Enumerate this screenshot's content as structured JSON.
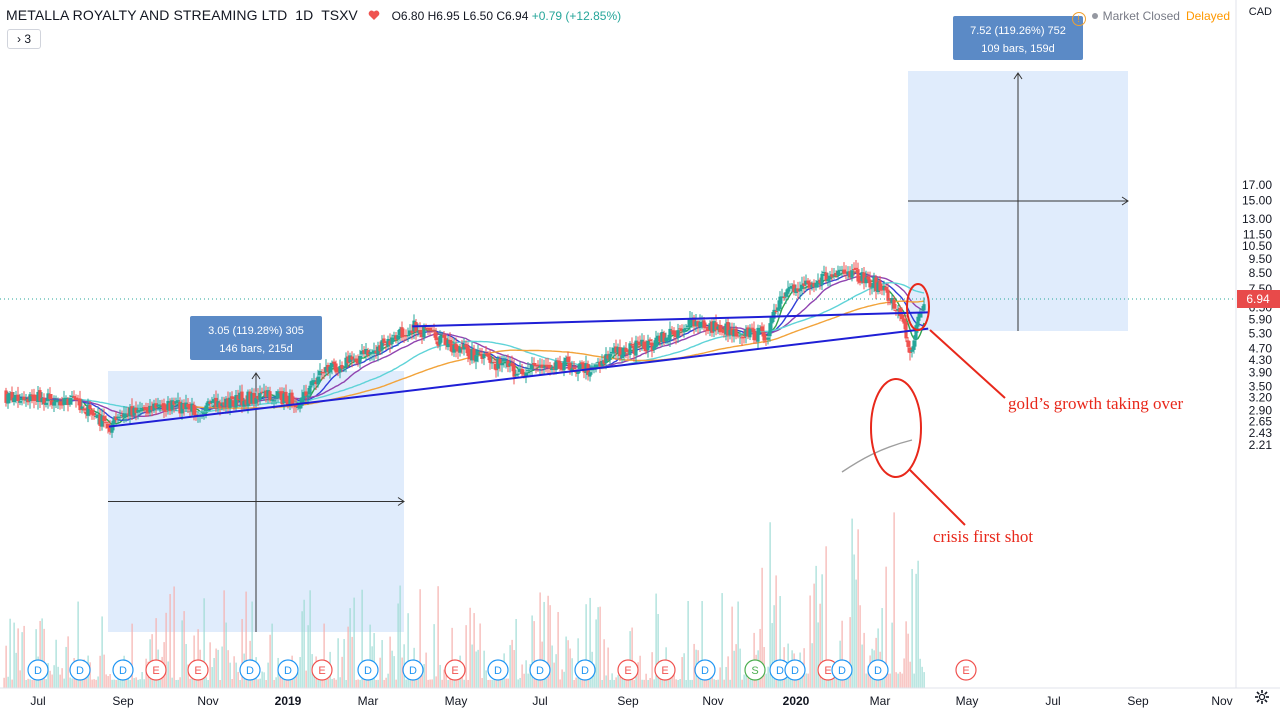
{
  "header": {
    "title": "METALLA ROYALTY AND STREAMING LTD",
    "interval": "1D",
    "exchange": "TSXV",
    "open": "O6.80",
    "high": "H6.95",
    "low": "L6.50",
    "close": "C6.94",
    "change": "+0.79 (+12.85%)",
    "indicators_button": "3"
  },
  "status": {
    "market": "Market Closed",
    "delayed": "Delayed"
  },
  "currency": "CAD",
  "colors": {
    "up": "#26a69a",
    "down": "#ef5350",
    "trend": "#1f1fd6",
    "annotation": "#e8281b",
    "measure_fill": "#dbe9fb",
    "label_box": "#5b8ac6",
    "price_tag": "#e84a4a",
    "ma_green": "#2fa24d",
    "ma_blue": "#3140d8",
    "ma_purple": "#9044b0",
    "ma_cyan": "#5fd3d8",
    "ma_orange": "#f2a33a",
    "ma_gray": "#9e9e9e"
  },
  "chart_data": {
    "type": "candlestick",
    "title": "METALLA ROYALTY AND STREAMING LTD",
    "price_axis": {
      "ticks": [
        "17.00",
        "15.00",
        "13.00",
        "11.50",
        "10.50",
        "9.50",
        "8.50",
        "7.50",
        "6.50",
        "5.90",
        "5.30",
        "4.70",
        "4.30",
        "3.90",
        "3.50",
        "3.20",
        "2.90",
        "2.65",
        "2.43",
        "2.21"
      ],
      "scale": "log",
      "last_price": "6.94"
    },
    "time_axis": {
      "ticks": [
        "Jul",
        "Sep",
        "Nov",
        "2019",
        "Mar",
        "May",
        "Jul",
        "Sep",
        "Nov",
        "2020",
        "Mar",
        "May",
        "Jul",
        "Sep",
        "Nov"
      ]
    },
    "price_path": [
      {
        "date": "2018-06-15",
        "close": 3.22
      },
      {
        "date": "2018-07-15",
        "close": 3.18
      },
      {
        "date": "2018-08-05",
        "close": 3.12
      },
      {
        "date": "2018-08-20",
        "close": 2.72
      },
      {
        "date": "2018-08-28",
        "close": 2.55
      },
      {
        "date": "2018-09-15",
        "close": 2.95
      },
      {
        "date": "2018-10-15",
        "close": 3.0
      },
      {
        "date": "2018-11-01",
        "close": 2.9
      },
      {
        "date": "2018-11-20",
        "close": 3.1
      },
      {
        "date": "2018-12-15",
        "close": 3.25
      },
      {
        "date": "2019-01-10",
        "close": 3.12
      },
      {
        "date": "2019-01-25",
        "close": 3.95
      },
      {
        "date": "2019-02-15",
        "close": 4.3
      },
      {
        "date": "2019-03-10",
        "close": 4.8
      },
      {
        "date": "2019-03-30",
        "close": 5.6
      },
      {
        "date": "2019-04-15",
        "close": 5.1
      },
      {
        "date": "2019-05-15",
        "close": 4.45
      },
      {
        "date": "2019-06-10",
        "close": 3.95
      },
      {
        "date": "2019-07-10",
        "close": 4.25
      },
      {
        "date": "2019-08-01",
        "close": 4.0
      },
      {
        "date": "2019-08-20",
        "close": 4.6
      },
      {
        "date": "2019-09-15",
        "close": 4.85
      },
      {
        "date": "2019-10-10",
        "close": 5.7
      },
      {
        "date": "2019-11-05",
        "close": 5.5
      },
      {
        "date": "2019-11-20",
        "close": 5.3
      },
      {
        "date": "2019-12-05",
        "close": 5.25
      },
      {
        "date": "2019-12-15",
        "close": 6.9
      },
      {
        "date": "2020-01-01",
        "close": 7.9
      },
      {
        "date": "2020-01-20",
        "close": 8.3
      },
      {
        "date": "2020-02-05",
        "close": 8.35
      },
      {
        "date": "2020-02-20",
        "close": 7.8
      },
      {
        "date": "2020-03-05",
        "close": 6.6
      },
      {
        "date": "2020-03-12",
        "close": 5.4
      },
      {
        "date": "2020-03-16",
        "close": 4.45
      },
      {
        "date": "2020-03-20",
        "close": 6.15
      },
      {
        "date": "2020-03-26",
        "close": 6.94
      }
    ],
    "trendlines": [
      {
        "name": "support",
        "from": {
          "date": "2018-08-28",
          "price": 2.55
        },
        "to": {
          "date": "2020-03-28",
          "price": 5.5
        }
      },
      {
        "name": "resistance",
        "from": {
          "date": "2019-03-30",
          "price": 5.6
        },
        "to": {
          "date": "2020-03-28",
          "price": 6.25
        }
      }
    ],
    "measurements": [
      {
        "label_line1": "3.05 (119.28%) 305",
        "label_line2": "146 bars, 215d"
      },
      {
        "label_line1": "7.52 (119.26%) 752",
        "label_line2": "109 bars, 159d"
      }
    ],
    "annotations": [
      "gold’s growth taking over",
      "crisis first shot"
    ],
    "event_markers": [
      "D",
      "D",
      "D",
      "E",
      "E",
      "D",
      "D",
      "E",
      "D",
      "D",
      "E",
      "D",
      "D",
      "D",
      "E",
      "E",
      "D",
      "S",
      "D",
      "D",
      "E",
      "D",
      "D",
      "E"
    ]
  }
}
